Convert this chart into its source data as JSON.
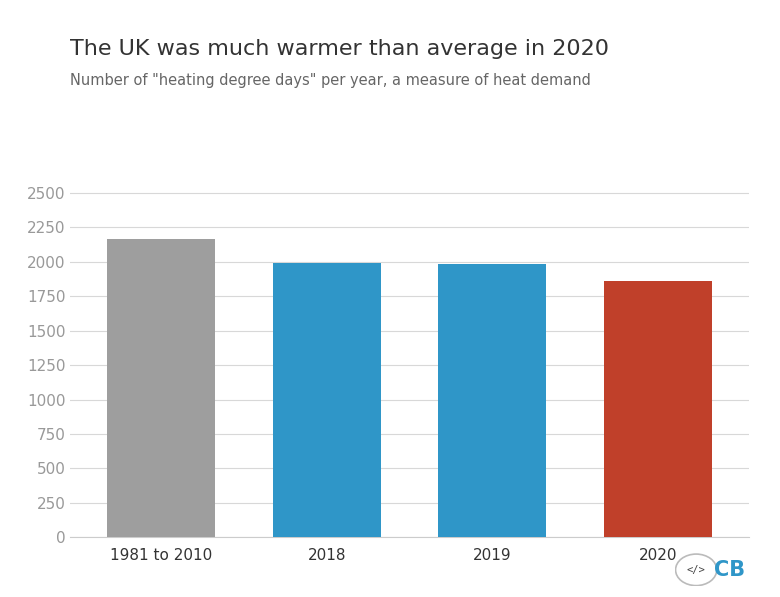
{
  "categories": [
    "1981 to 2010",
    "2018",
    "2019",
    "2020"
  ],
  "values": [
    2163,
    1993,
    1983,
    1860
  ],
  "bar_colors": [
    "#9e9e9e",
    "#2f96c8",
    "#2f96c8",
    "#c0402a"
  ],
  "title": "The UK was much warmer than average in 2020",
  "subtitle": "Number of \"heating degree days\" per year, a measure of heat demand",
  "title_fontsize": 16,
  "subtitle_fontsize": 10.5,
  "tick_label_fontsize": 11,
  "ylim": [
    0,
    2600
  ],
  "yticks": [
    0,
    250,
    500,
    750,
    1000,
    1250,
    1500,
    1750,
    2000,
    2250,
    2500
  ],
  "background_color": "#ffffff",
  "grid_color": "#d8d8d8",
  "text_color": "#333333",
  "subtitle_color": "#666666",
  "bar_width": 0.65,
  "bottom_axis_color": "#cccccc"
}
